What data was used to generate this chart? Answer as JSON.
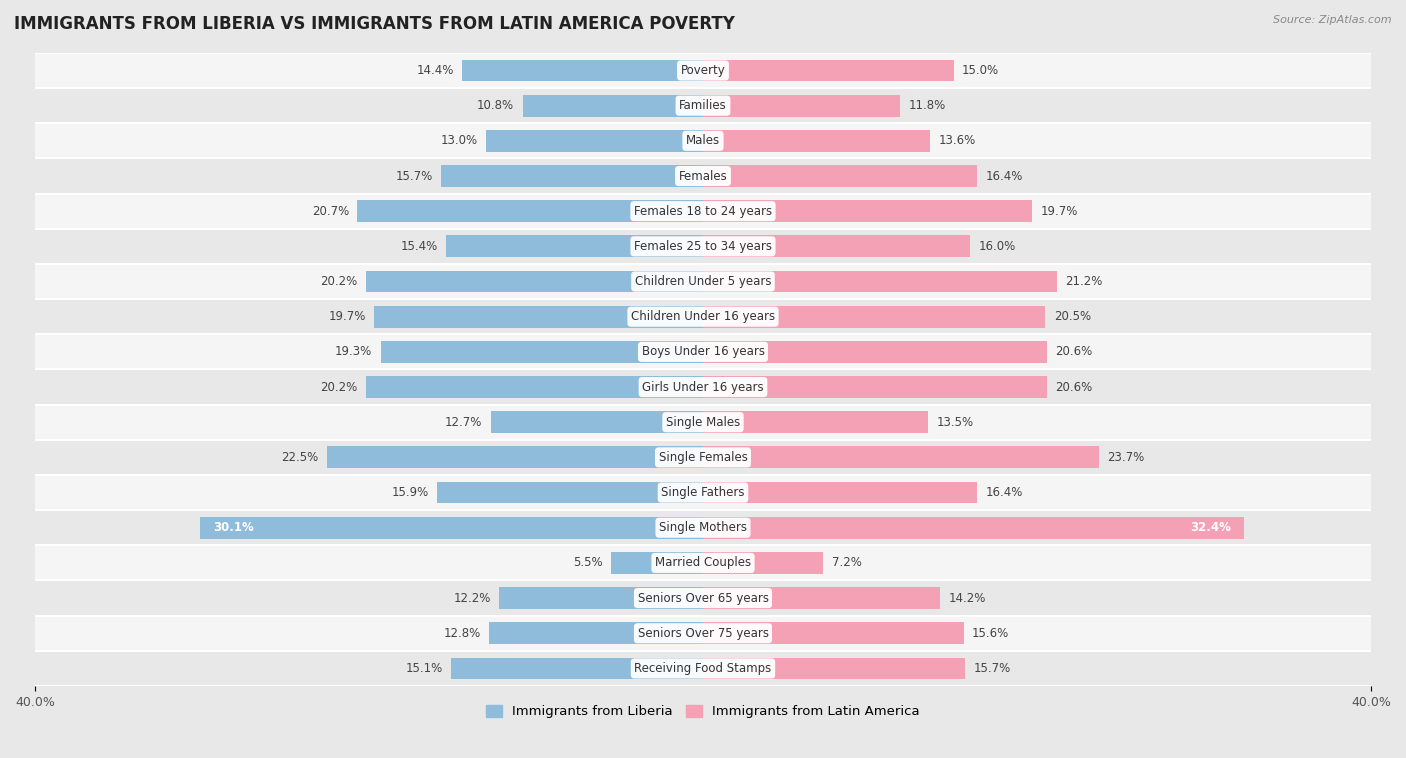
{
  "title": "IMMIGRANTS FROM LIBERIA VS IMMIGRANTS FROM LATIN AMERICA POVERTY",
  "source": "Source: ZipAtlas.com",
  "categories": [
    "Poverty",
    "Families",
    "Males",
    "Females",
    "Females 18 to 24 years",
    "Females 25 to 34 years",
    "Children Under 5 years",
    "Children Under 16 years",
    "Boys Under 16 years",
    "Girls Under 16 years",
    "Single Males",
    "Single Females",
    "Single Fathers",
    "Single Mothers",
    "Married Couples",
    "Seniors Over 65 years",
    "Seniors Over 75 years",
    "Receiving Food Stamps"
  ],
  "liberia_values": [
    14.4,
    10.8,
    13.0,
    15.7,
    20.7,
    15.4,
    20.2,
    19.7,
    19.3,
    20.2,
    12.7,
    22.5,
    15.9,
    30.1,
    5.5,
    12.2,
    12.8,
    15.1
  ],
  "latin_values": [
    15.0,
    11.8,
    13.6,
    16.4,
    19.7,
    16.0,
    21.2,
    20.5,
    20.6,
    20.6,
    13.5,
    23.7,
    16.4,
    32.4,
    7.2,
    14.2,
    15.6,
    15.7
  ],
  "liberia_color": "#8fbcdb",
  "latin_color": "#f4a0b5",
  "liberia_label": "Immigrants from Liberia",
  "latin_label": "Immigrants from Latin America",
  "xlim": 40.0,
  "bg_color": "#e8e8e8",
  "row_bg_colors": [
    "#f5f5f5",
    "#e8e8e8"
  ],
  "title_fontsize": 12,
  "label_fontsize": 8.5,
  "value_fontsize": 8.5,
  "bar_height": 0.62
}
